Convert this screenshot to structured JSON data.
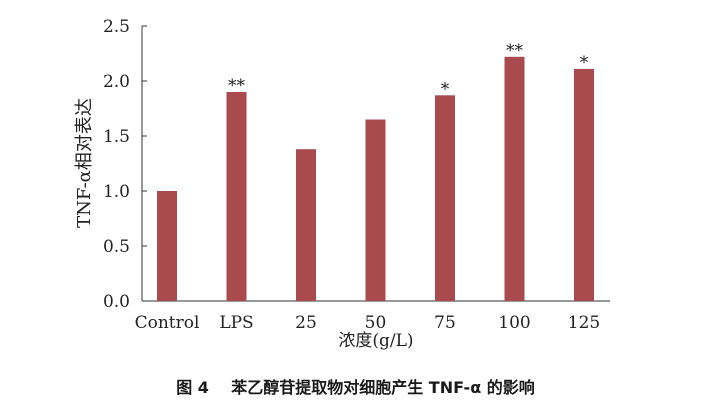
{
  "chart_data": {
    "type": "bar",
    "categories": [
      "Control",
      "LPS",
      "25",
      "50",
      "75",
      "100",
      "125"
    ],
    "values": [
      1.0,
      1.9,
      1.38,
      1.65,
      1.87,
      2.22,
      2.11
    ],
    "annotations": [
      "",
      "**",
      "",
      "",
      "*",
      "**",
      "*"
    ],
    "title": "",
    "xlabel": "浓度(g/L)",
    "ylabel": "TNF-α相对表达",
    "ylim": [
      0,
      2.5
    ],
    "yticks": [
      "0.0",
      "0.5",
      "1.0",
      "1.5",
      "2.0",
      "2.5"
    ],
    "bar_color": "#a94a4f",
    "grid": false
  },
  "caption": {
    "figure_number": "图 4",
    "text": "苯乙醇苷提取物对细胞产生 TNF-α 的影响"
  }
}
